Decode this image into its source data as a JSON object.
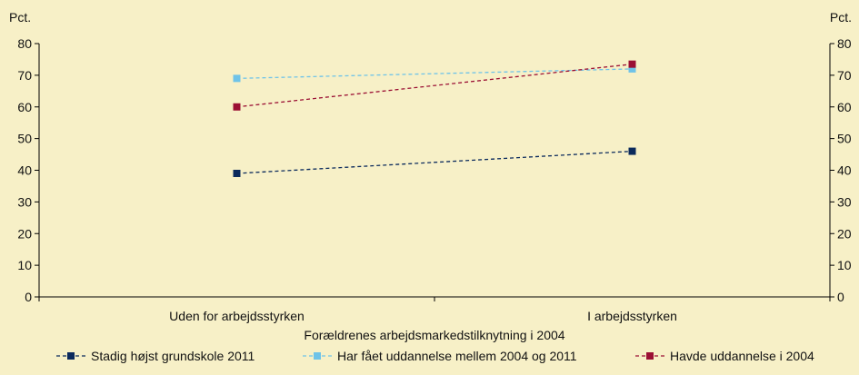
{
  "chart_data": {
    "type": "line",
    "title": "",
    "xlabel": "Forældrenes arbejdsmarkedstilknytning i 2004",
    "ylabel_left": "Pct.",
    "ylabel_right": "Pct.",
    "ylim": [
      0,
      80
    ],
    "y_ticks": [
      0,
      10,
      20,
      30,
      40,
      50,
      60,
      70,
      80
    ],
    "y_tick_labels": [
      "0",
      "10",
      "20",
      "30",
      "40",
      "50",
      "60",
      "70",
      "80"
    ],
    "categories": [
      "Uden for arbejdsstyrken",
      "I arbejdsstyrken"
    ],
    "grid": false,
    "legend_position": "bottom",
    "series": [
      {
        "name": "Stadig højst grundskole 2011",
        "color": "#0b2a5c",
        "values": [
          39,
          46
        ]
      },
      {
        "name": "Har fået uddannelse mellem 2004 og 2011",
        "color": "#6fc3e8",
        "values": [
          69,
          72
        ]
      },
      {
        "name": "Havde uddannelse i 2004",
        "color": "#9b1034",
        "values": [
          60,
          73.5
        ]
      }
    ]
  }
}
